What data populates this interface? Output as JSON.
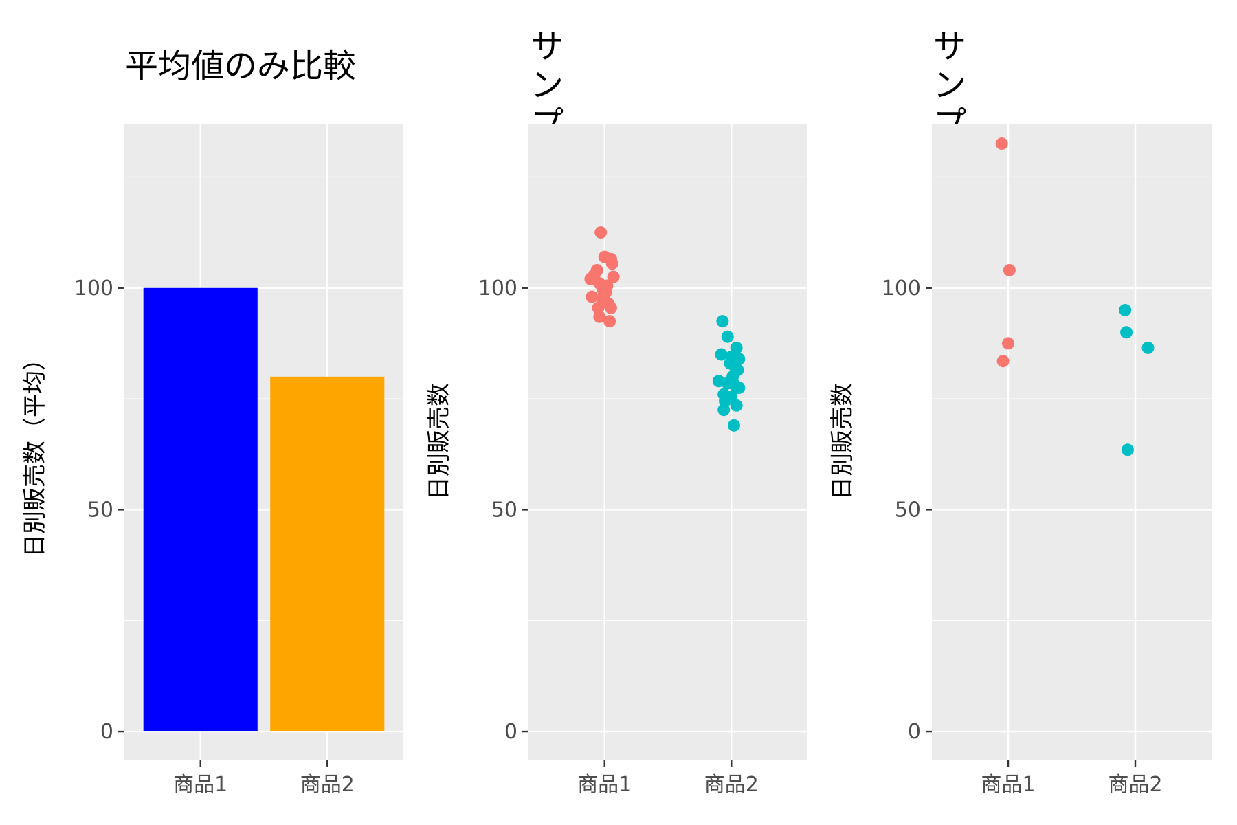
{
  "chart_data": [
    {
      "type": "bar",
      "title": "平均値のみ比較",
      "ylabel": "日別販売数（平均）",
      "categories": [
        "商品1",
        "商品2"
      ],
      "values": [
        100,
        80
      ],
      "colors": [
        "#0000ff",
        "#ffa500"
      ],
      "yticks": [
        0,
        50,
        100
      ],
      "ylim": [
        -6.5,
        137
      ],
      "grid": true
    },
    {
      "type": "scatter",
      "title": "サンプルサイズ大\nばらつき小",
      "ylabel": "日別販売数",
      "categories": [
        "商品1",
        "商品2"
      ],
      "yticks": [
        0,
        50,
        100
      ],
      "ylim": [
        -6.5,
        137
      ],
      "grid": true,
      "series": [
        {
          "category": "商品1",
          "color": "#f8766d",
          "points": [
            {
              "x": 0.97,
              "y": 112.5
            },
            {
              "x": 1.0,
              "y": 107
            },
            {
              "x": 1.05,
              "y": 106.5
            },
            {
              "x": 1.06,
              "y": 105.5
            },
            {
              "x": 0.94,
              "y": 104
            },
            {
              "x": 0.92,
              "y": 103
            },
            {
              "x": 1.07,
              "y": 102.5
            },
            {
              "x": 0.89,
              "y": 102
            },
            {
              "x": 0.96,
              "y": 101
            },
            {
              "x": 1.02,
              "y": 100.5
            },
            {
              "x": 0.99,
              "y": 99.5
            },
            {
              "x": 1.01,
              "y": 99
            },
            {
              "x": 0.9,
              "y": 98
            },
            {
              "x": 0.98,
              "y": 97.5
            },
            {
              "x": 1.03,
              "y": 96.5
            },
            {
              "x": 0.95,
              "y": 95.5
            },
            {
              "x": 1.05,
              "y": 95.5
            },
            {
              "x": 0.96,
              "y": 93.5
            },
            {
              "x": 1.04,
              "y": 92.5
            }
          ]
        },
        {
          "category": "商品2",
          "color": "#00bfc4",
          "points": [
            {
              "x": 1.93,
              "y": 92.5
            },
            {
              "x": 1.97,
              "y": 89
            },
            {
              "x": 2.04,
              "y": 86.5
            },
            {
              "x": 1.92,
              "y": 85
            },
            {
              "x": 2.0,
              "y": 84.5
            },
            {
              "x": 2.06,
              "y": 84
            },
            {
              "x": 1.99,
              "y": 83
            },
            {
              "x": 2.02,
              "y": 82.5
            },
            {
              "x": 2.05,
              "y": 81.5
            },
            {
              "x": 2.01,
              "y": 80
            },
            {
              "x": 1.9,
              "y": 79
            },
            {
              "x": 1.97,
              "y": 78.5
            },
            {
              "x": 2.03,
              "y": 78
            },
            {
              "x": 2.06,
              "y": 77.5
            },
            {
              "x": 1.94,
              "y": 76
            },
            {
              "x": 2.0,
              "y": 75.5
            },
            {
              "x": 1.95,
              "y": 74.5
            },
            {
              "x": 2.04,
              "y": 73.5
            },
            {
              "x": 1.94,
              "y": 72.5
            },
            {
              "x": 2.02,
              "y": 69
            }
          ]
        }
      ]
    },
    {
      "type": "scatter",
      "title": "サンプルサイズ小\nばらつき大",
      "ylabel": "日別販売数",
      "categories": [
        "商品1",
        "商品2"
      ],
      "yticks": [
        0,
        50,
        100
      ],
      "ylim": [
        -6.5,
        137
      ],
      "grid": true,
      "series": [
        {
          "category": "商品1",
          "color": "#f8766d",
          "points": [
            {
              "x": 0.95,
              "y": 132.5
            },
            {
              "x": 1.01,
              "y": 104
            },
            {
              "x": 1.0,
              "y": 87.5
            },
            {
              "x": 0.96,
              "y": 83.5
            }
          ]
        },
        {
          "category": "商品2",
          "color": "#00bfc4",
          "points": [
            {
              "x": 1.92,
              "y": 95
            },
            {
              "x": 1.93,
              "y": 90
            },
            {
              "x": 2.1,
              "y": 86.5
            },
            {
              "x": 1.94,
              "y": 63.5
            }
          ]
        }
      ]
    }
  ]
}
